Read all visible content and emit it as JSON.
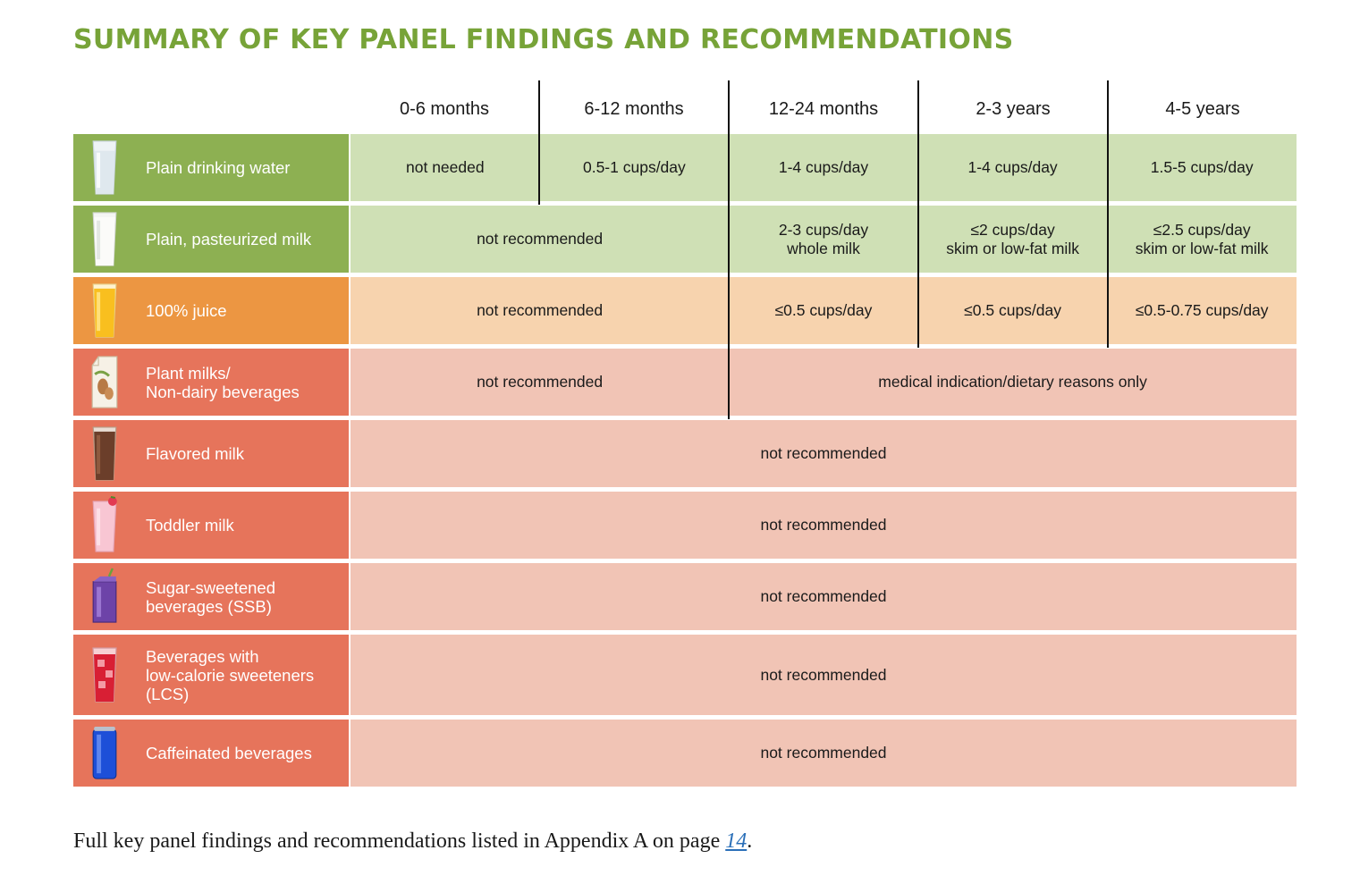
{
  "title": "SUMMARY OF KEY PANEL FINDINGS AND RECOMMENDATIONS",
  "columns": [
    "0-6 months",
    "6-12 months",
    "12-24 months",
    "2-3 years",
    "4-5 years"
  ],
  "colors": {
    "title_green": "#77a338",
    "green_label": "#8db052",
    "green_cell": "#cfe0b5",
    "orange_label": "#ec9642",
    "orange_cell": "#f7d3ae",
    "red_label": "#e6745b",
    "red_cell": "#f1c4b5",
    "link_blue": "#2a6fb8"
  },
  "rows": [
    {
      "label": "Plain drinking water",
      "icon": "water-glass-icon",
      "tone": "green",
      "cells": [
        {
          "text": "not needed",
          "span": 1
        },
        {
          "text": "0.5-1 cups/day",
          "span": 1
        },
        {
          "text": "1-4 cups/day",
          "span": 1
        },
        {
          "text": "1-4 cups/day",
          "span": 1
        },
        {
          "text": "1.5-5 cups/day",
          "span": 1
        }
      ]
    },
    {
      "label": "Plain, pasteurized milk",
      "icon": "milk-glass-icon",
      "tone": "green",
      "cells": [
        {
          "text": "not recommended",
          "span": 2
        },
        {
          "text": "2-3 cups/day\nwhole milk",
          "span": 1
        },
        {
          "text": "≤2 cups/day\nskim or low-fat milk",
          "span": 1
        },
        {
          "text": "≤2.5 cups/day\nskim or low-fat milk",
          "span": 1
        }
      ]
    },
    {
      "label": "100% juice",
      "icon": "juice-glass-icon",
      "tone": "orange",
      "cells": [
        {
          "text": "not recommended",
          "span": 2
        },
        {
          "text": "≤0.5 cups/day",
          "span": 1
        },
        {
          "text": "≤0.5 cups/day",
          "span": 1
        },
        {
          "text": "≤0.5-0.75 cups/day",
          "span": 1
        }
      ]
    },
    {
      "label": "Plant milks/\nNon-dairy beverages",
      "icon": "almond-milk-carton-icon",
      "tone": "red",
      "cells": [
        {
          "text": "not recommended",
          "span": 2
        },
        {
          "text": "medical indication/dietary reasons only",
          "span": 3
        }
      ]
    },
    {
      "label": "Flavored milk",
      "icon": "chocolate-milk-glass-icon",
      "tone": "red",
      "cells": [
        {
          "text": "not recommended",
          "span": 5
        }
      ]
    },
    {
      "label": "Toddler milk",
      "icon": "strawberry-milk-glass-icon",
      "tone": "red",
      "cells": [
        {
          "text": "not recommended",
          "span": 5
        }
      ]
    },
    {
      "label": "Sugar-sweetened\nbeverages (SSB)",
      "icon": "juice-box-icon",
      "tone": "red",
      "cells": [
        {
          "text": "not recommended",
          "span": 5
        }
      ]
    },
    {
      "label": "Beverages with\nlow-calorie sweeteners\n(LCS)",
      "icon": "iced-red-drink-icon",
      "tone": "red",
      "cells": [
        {
          "text": "not recommended",
          "span": 5
        }
      ]
    },
    {
      "label": "Caffeinated beverages",
      "icon": "soda-can-icon",
      "tone": "red",
      "cells": [
        {
          "text": "not recommended",
          "span": 5
        }
      ]
    }
  ],
  "footnote": {
    "before": "Full key panel findings and recommendations listed in Appendix A on page ",
    "link": "14",
    "after": "."
  }
}
